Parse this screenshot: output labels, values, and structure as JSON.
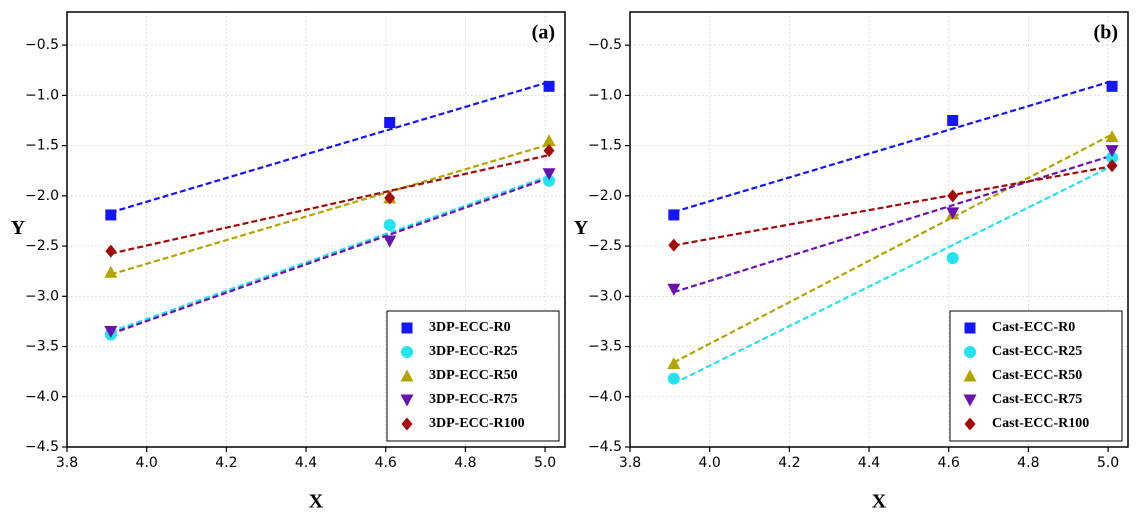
{
  "chart_data": [
    {
      "type": "scatter",
      "panel_label": "(a)",
      "x_label": "X",
      "y_label": "Y",
      "x": [
        3.91,
        4.61,
        5.01
      ],
      "xlim": [
        3.8,
        5.05
      ],
      "xticks": [
        3.8,
        {
          "value": 4,
          "label": "4.0"
        },
        4.2,
        4.4,
        4.6,
        4.8,
        {
          "value": 5,
          "label": "5.0"
        }
      ],
      "ylim": [
        -4.5,
        -0.17
      ],
      "yticks": [
        {
          "value": -4.5,
          "label": "−4.5"
        },
        {
          "value": -4,
          "label": "−4.0"
        },
        {
          "value": -3.5,
          "label": "−3.5"
        },
        {
          "value": -3,
          "label": "−3.0"
        },
        {
          "value": -2.5,
          "label": "−2.5"
        },
        {
          "value": -2,
          "label": "−2.0"
        },
        {
          "value": -1.5,
          "label": "−1.5"
        },
        {
          "value": -1,
          "label": "−1.0"
        },
        {
          "value": -0.5,
          "label": "−0.5"
        }
      ],
      "grid": true,
      "legend": "lower right",
      "trend_lines": true,
      "series": [
        {
          "name": "3DP-ECC-R0",
          "color": "#1414ff",
          "marker": "square",
          "values": [
            -2.19,
            -1.27,
            -0.91
          ]
        },
        {
          "name": "3DP-ECC-R25",
          "color": "#22e3ee",
          "marker": "circle",
          "values": [
            -3.38,
            -2.29,
            -1.85
          ]
        },
        {
          "name": "3DP-ECC-R50",
          "color": "#b3a500",
          "marker": "triangle-up",
          "values": [
            -2.76,
            -2.02,
            -1.45
          ]
        },
        {
          "name": "3DP-ECC-R75",
          "color": "#6a12b0",
          "marker": "triangle-down",
          "values": [
            -3.35,
            -2.45,
            -1.78
          ]
        },
        {
          "name": "3DP-ECC-R100",
          "color": "#a30808",
          "marker": "diamond",
          "values": [
            -2.55,
            -2.02,
            -1.55
          ]
        }
      ]
    },
    {
      "type": "scatter",
      "panel_label": "(b)",
      "x_label": "X",
      "y_label": "Y",
      "x": [
        3.91,
        4.61,
        5.01
      ],
      "xlim": [
        3.8,
        5.05
      ],
      "xticks": [
        3.8,
        {
          "value": 4,
          "label": "4.0"
        },
        4.2,
        4.4,
        4.6,
        4.8,
        {
          "value": 5,
          "label": "5.0"
        }
      ],
      "ylim": [
        -4.5,
        -0.17
      ],
      "yticks": [
        {
          "value": -4.5,
          "label": "−4.5"
        },
        {
          "value": -4,
          "label": "−4.0"
        },
        {
          "value": -3.5,
          "label": "−3.5"
        },
        {
          "value": -3,
          "label": "−3.0"
        },
        {
          "value": -2.5,
          "label": "−2.5"
        },
        {
          "value": -2,
          "label": "−2.0"
        },
        {
          "value": -1.5,
          "label": "−1.5"
        },
        {
          "value": -1,
          "label": "−1.0"
        },
        {
          "value": -0.5,
          "label": "−0.5"
        }
      ],
      "grid": true,
      "legend": "lower right",
      "trend_lines": true,
      "series": [
        {
          "name": "Cast-ECC-R0",
          "color": "#1414ff",
          "marker": "square",
          "values": [
            -2.19,
            -1.25,
            -0.91
          ]
        },
        {
          "name": "Cast-ECC-R25",
          "color": "#22e3ee",
          "marker": "circle",
          "values": [
            -3.82,
            -2.62,
            -1.62
          ]
        },
        {
          "name": "Cast-ECC-R50",
          "color": "#b3a500",
          "marker": "triangle-up",
          "values": [
            -3.67,
            -2.18,
            -1.41
          ]
        },
        {
          "name": "Cast-ECC-R75",
          "color": "#6a12b0",
          "marker": "triangle-down",
          "values": [
            -2.93,
            -2.17,
            -1.55
          ]
        },
        {
          "name": "Cast-ECC-R100",
          "color": "#a30808",
          "marker": "diamond",
          "values": [
            -2.49,
            -2.0,
            -1.7
          ]
        }
      ]
    }
  ]
}
